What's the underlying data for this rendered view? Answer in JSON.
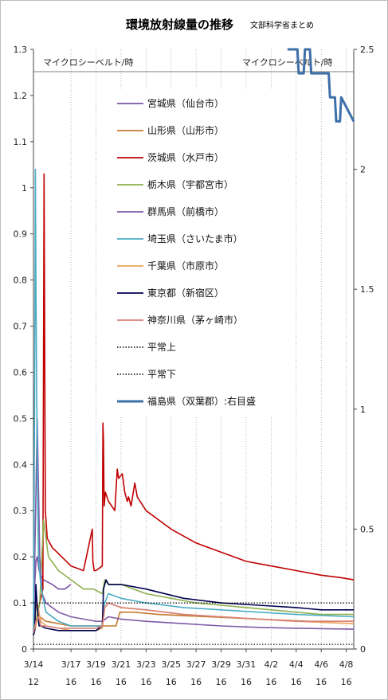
{
  "chart_data": {
    "type": "line",
    "title": "環境放射線量の推移",
    "subtitle": "文部科学省まとめ",
    "left_unit": "マイクロシーベルト/時",
    "right_unit": "マイクロシーベルト/時",
    "ylim": [
      0,
      1.3
    ],
    "y2lim": [
      0,
      2.5
    ],
    "y_ticks": [
      "0",
      "0.1",
      "0.2",
      "0.3",
      "0.4",
      "0.5",
      "0.6",
      "0.7",
      "0.8",
      "0.9",
      "1",
      "1.1",
      "1.2",
      "1.3"
    ],
    "y2_ticks": [
      "0",
      "0.5",
      "1",
      "1.5",
      "2",
      "2.5"
    ],
    "x_tick_dates": [
      "3/14",
      "3/17",
      "3/19",
      "3/21",
      "3/23",
      "3/25",
      "3/27",
      "3/29",
      "3/31",
      "4/2",
      "4/4",
      "4/6",
      "4/8"
    ],
    "x_tick_hours": [
      "12",
      "16",
      "16",
      "16",
      "16",
      "16",
      "16",
      "16",
      "16",
      "16",
      "16",
      "16",
      "16"
    ],
    "xlim_days": [
      0,
      25.6
    ],
    "grid": "vertical dotted",
    "legend_position": "left-inside",
    "series": [
      {
        "name": "宮城県（仙台市）",
        "color": "#7b52a5",
        "axis": "left",
        "x": [
          0,
          0.1,
          0.2,
          0.3,
          0.45,
          0.6,
          0.8,
          1.5,
          2.0,
          2.5,
          3.0
        ],
        "y": [
          0.1,
          0.14,
          0.19,
          0.2,
          0.17,
          0.16,
          0.15,
          0.14,
          0.13,
          0.13,
          0.14
        ]
      },
      {
        "name": "山形県（山形市）",
        "color": "#c37a2e",
        "axis": "left",
        "x": [
          0,
          0.2,
          0.3,
          0.5,
          1,
          3,
          5,
          6.6,
          6.9,
          8,
          10,
          14,
          18,
          22,
          25.6
        ],
        "y": [
          0.04,
          0.09,
          0.1,
          0.07,
          0.06,
          0.05,
          0.05,
          0.05,
          0.08,
          0.08,
          0.075,
          0.07,
          0.065,
          0.06,
          0.06
        ]
      },
      {
        "name": "茨城県（水戸市）",
        "color": "#c00000",
        "axis": "left",
        "x": [
          0,
          0.25,
          0.35,
          0.5,
          0.75,
          0.85,
          0.95,
          1.1,
          1.5,
          3,
          4,
          4.7,
          4.75,
          4.85,
          4.9,
          5,
          5.5,
          5.55,
          5.6,
          5.65,
          5.75,
          6,
          6.5,
          6.7,
          6.8,
          7.1,
          7.3,
          7.5,
          7.6,
          7.8,
          8.1,
          8.3,
          9,
          11,
          13,
          15,
          17,
          19,
          21,
          23,
          24.5,
          25.6
        ],
        "y": [
          0.04,
          0.06,
          0.08,
          0.1,
          0.13,
          1.03,
          0.3,
          0.24,
          0.22,
          0.18,
          0.17,
          0.26,
          0.19,
          0.17,
          0.17,
          0.17,
          0.18,
          0.49,
          0.45,
          0.31,
          0.34,
          0.32,
          0.3,
          0.39,
          0.37,
          0.38,
          0.34,
          0.32,
          0.33,
          0.31,
          0.36,
          0.33,
          0.3,
          0.26,
          0.23,
          0.21,
          0.19,
          0.18,
          0.17,
          0.16,
          0.155,
          0.15
        ]
      },
      {
        "name": "栃木県（宇都宮市）",
        "color": "#8fb04f",
        "axis": "left",
        "x": [
          0,
          0.5,
          0.8,
          1.2,
          2,
          3,
          4,
          4.8,
          5.5,
          5.7,
          6,
          7,
          8,
          9,
          11,
          13,
          15,
          17,
          19,
          21,
          23,
          25.6
        ],
        "y": [
          0.04,
          0.1,
          0.28,
          0.2,
          0.17,
          0.15,
          0.13,
          0.13,
          0.12,
          0.15,
          0.14,
          0.14,
          0.13,
          0.12,
          0.11,
          0.1,
          0.095,
          0.09,
          0.085,
          0.08,
          0.075,
          0.075
        ]
      },
      {
        "name": "群馬県（前橋市）",
        "color": "#7f5aa8",
        "axis": "left",
        "x": [
          0,
          0.3,
          0.5,
          0.7,
          1,
          2,
          3,
          4,
          5,
          5.5,
          6,
          7,
          9,
          12,
          15,
          18,
          21,
          25.6
        ],
        "y": [
          0.03,
          0.5,
          0.2,
          0.12,
          0.1,
          0.08,
          0.07,
          0.065,
          0.06,
          0.06,
          0.07,
          0.065,
          0.06,
          0.055,
          0.05,
          0.047,
          0.045,
          0.043
        ]
      },
      {
        "name": "埼玉県（さいたま市）",
        "color": "#4bacc6",
        "axis": "left",
        "x": [
          0,
          0.1,
          0.15,
          0.2,
          0.3,
          0.4,
          0.55,
          0.7,
          1,
          2,
          3,
          4,
          5,
          5.5,
          5.7,
          6,
          7,
          9,
          12,
          15,
          18,
          21,
          25.6
        ],
        "y": [
          0.03,
          0.6,
          1.04,
          0.8,
          0.4,
          0.2,
          0.15,
          0.12,
          0.08,
          0.06,
          0.05,
          0.05,
          0.05,
          0.05,
          0.1,
          0.12,
          0.11,
          0.1,
          0.09,
          0.085,
          0.08,
          0.075,
          0.07
        ]
      },
      {
        "name": "千葉県（市原市）",
        "color": "#e9a25a",
        "axis": "left",
        "x": [
          0,
          0.2,
          0.4,
          0.6,
          1,
          2,
          3,
          4,
          5,
          5.5,
          5.7,
          6,
          7,
          9,
          12,
          15,
          18,
          21,
          25.6
        ],
        "y": [
          0.03,
          0.05,
          0.08,
          0.06,
          0.05,
          0.045,
          0.04,
          0.04,
          0.04,
          0.045,
          0.09,
          0.1,
          0.09,
          0.085,
          0.075,
          0.07,
          0.065,
          0.06,
          0.055
        ]
      },
      {
        "name": "東京都（新宿区）",
        "color": "#00004f",
        "axis": "left",
        "x": [
          0,
          0.1,
          0.2,
          0.3,
          0.45,
          0.6,
          1,
          2,
          3,
          4,
          5,
          5.5,
          5.6,
          5.8,
          6,
          7,
          9,
          12,
          15,
          18,
          21,
          23,
          25.6
        ],
        "y": [
          0.03,
          0.04,
          0.14,
          0.09,
          0.05,
          0.05,
          0.045,
          0.04,
          0.04,
          0.04,
          0.04,
          0.05,
          0.13,
          0.15,
          0.14,
          0.14,
          0.13,
          0.11,
          0.1,
          0.095,
          0.09,
          0.085,
          0.085
        ]
      },
      {
        "name": "神奈川県（茅ヶ崎市）",
        "color": "#d9817a",
        "axis": "left",
        "x": [
          0,
          0.2,
          0.4,
          0.6,
          1,
          2,
          3,
          4,
          5,
          5.5,
          5.7,
          6,
          7,
          9,
          12,
          15,
          18,
          21,
          25.6
        ],
        "y": [
          0.035,
          0.06,
          0.07,
          0.05,
          0.05,
          0.045,
          0.045,
          0.045,
          0.045,
          0.05,
          0.09,
          0.1,
          0.09,
          0.085,
          0.075,
          0.07,
          0.065,
          0.06,
          0.06
        ]
      },
      {
        "name": "平常上",
        "color": "#000000",
        "axis": "left",
        "dashed": true,
        "x": [
          0,
          25.6
        ],
        "y": [
          0.1,
          0.1
        ]
      },
      {
        "name": "平常下",
        "color": "#000000",
        "axis": "left",
        "dashed": true,
        "x": [
          0,
          25.6
        ],
        "y": [
          0.01,
          0.01
        ]
      },
      {
        "name": "福島県（双葉郡）:右目盛",
        "color": "#3d6fa8",
        "axis": "right",
        "x": [
          20.3,
          21.1,
          21.2,
          21.3,
          21.6,
          21.7,
          22.1,
          22.2,
          23.6,
          23.7,
          24.1,
          24.2,
          24.5,
          24.6,
          25.6
        ],
        "y": [
          2.5,
          2.5,
          2.4,
          2.4,
          2.4,
          2.5,
          2.5,
          2.4,
          2.4,
          2.3,
          2.3,
          2.2,
          2.2,
          2.3,
          2.2
        ]
      }
    ]
  }
}
